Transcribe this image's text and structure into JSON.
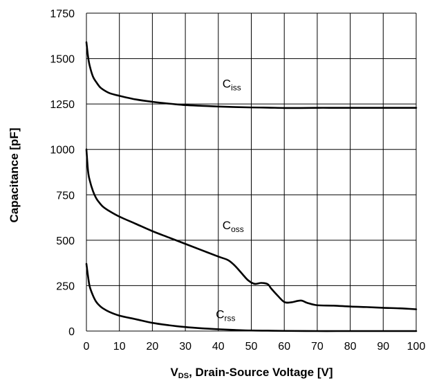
{
  "chart_data": {
    "type": "line",
    "xlabel_main": "V",
    "xlabel_sub": "DS",
    "xlabel_rest": ", Drain-Source Voltage [V]",
    "ylabel": "Capacitance [pF]",
    "xlim": [
      0,
      100
    ],
    "ylim": [
      0,
      1750
    ],
    "x_ticks": [
      "0",
      "10",
      "20",
      "30",
      "40",
      "50",
      "60",
      "70",
      "80",
      "90",
      "100"
    ],
    "y_ticks": [
      "0",
      "250",
      "500",
      "750",
      "1000",
      "1250",
      "1500",
      "1750"
    ],
    "grid": true,
    "series": [
      {
        "name": "Ciss",
        "label_main": "C",
        "label_sub": "iss",
        "x": [
          0,
          0.5,
          1,
          2,
          3,
          4,
          5,
          7,
          10,
          15,
          20,
          25,
          30,
          35,
          40,
          45,
          50,
          55,
          60,
          65,
          70,
          75,
          80,
          85,
          90,
          95,
          100
        ],
        "y": [
          1590,
          1510,
          1460,
          1400,
          1370,
          1345,
          1330,
          1310,
          1295,
          1275,
          1262,
          1252,
          1244,
          1240,
          1236,
          1233,
          1231,
          1230,
          1228,
          1228,
          1229,
          1229,
          1229,
          1229,
          1229,
          1229,
          1229
        ]
      },
      {
        "name": "Coss",
        "label_main": "C",
        "label_sub": "oss",
        "x": [
          0,
          0.5,
          1,
          2,
          3,
          4,
          5,
          7,
          10,
          15,
          20,
          25,
          30,
          35,
          40,
          43,
          45,
          47,
          49,
          51,
          53,
          55,
          56,
          58,
          60,
          62,
          65,
          67,
          70,
          75,
          80,
          85,
          90,
          95,
          100
        ],
        "y": [
          1000,
          880,
          830,
          770,
          730,
          705,
          685,
          660,
          630,
          590,
          550,
          515,
          480,
          445,
          410,
          390,
          360,
          320,
          280,
          260,
          265,
          258,
          235,
          195,
          160,
          158,
          168,
          155,
          142,
          140,
          135,
          132,
          128,
          125,
          120
        ]
      },
      {
        "name": "Crss",
        "label_main": "C",
        "label_sub": "rss",
        "x": [
          0,
          0.5,
          1,
          2,
          3,
          4,
          5,
          7,
          10,
          15,
          20,
          25,
          30,
          35,
          40,
          45,
          50,
          55,
          60,
          70,
          80,
          90,
          100
        ],
        "y": [
          370,
          300,
          245,
          195,
          160,
          140,
          125,
          105,
          85,
          65,
          45,
          32,
          22,
          15,
          10,
          6,
          3,
          2,
          1,
          0,
          0,
          0,
          0
        ]
      }
    ],
    "series_label_positions_data": [
      {
        "x": 40,
        "y": 1340
      },
      {
        "x": 40,
        "y": 560
      },
      {
        "x": 38,
        "y": 70
      }
    ]
  }
}
